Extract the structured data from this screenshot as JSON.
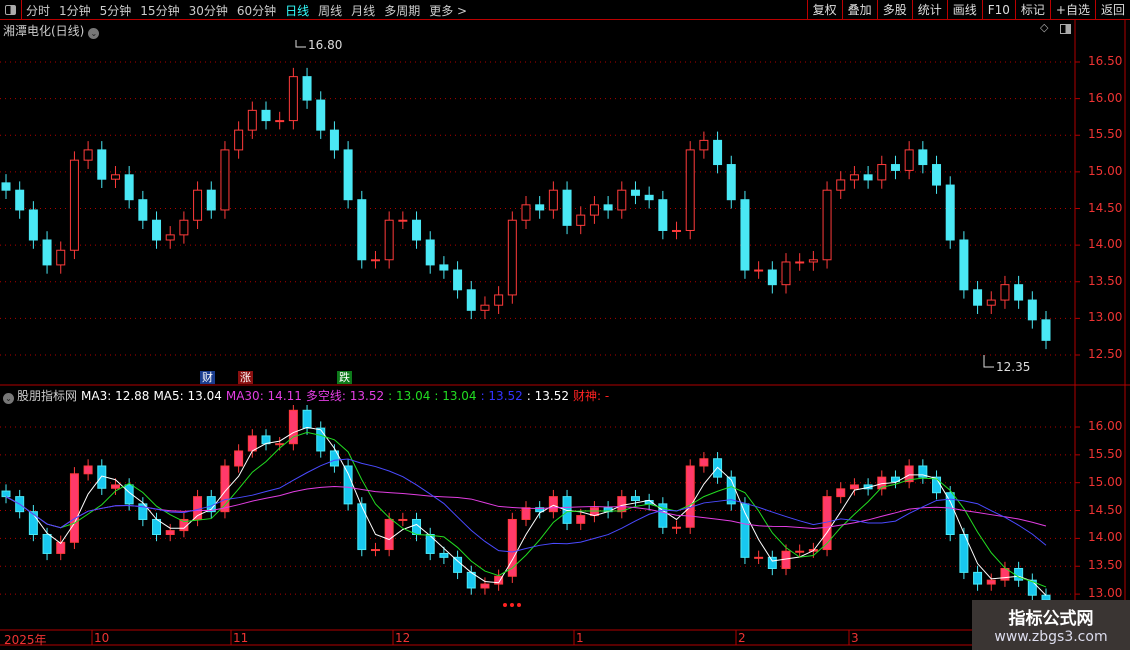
{
  "toolbar": {
    "periods": [
      "分时",
      "1分钟",
      "5分钟",
      "15分钟",
      "30分钟",
      "60分钟",
      "日线",
      "周线",
      "月线",
      "多周期",
      "更多 >"
    ],
    "active_index": 6,
    "buttons": [
      "复权",
      "叠加",
      "多股",
      "统计",
      "画线",
      "F10",
      "标记",
      "+自选",
      "返回"
    ]
  },
  "main": {
    "title": "湘潭电化(日线)",
    "high_label": "16.80",
    "low_label": "12.35",
    "y_ticks": [
      "16.50",
      "16.00",
      "15.50",
      "15.00",
      "14.50",
      "14.00",
      "13.50",
      "13.00",
      "12.50"
    ],
    "markers": [
      {
        "text": "财",
        "color": "#1a3d8f"
      },
      {
        "text": "涨",
        "color": "#8a1010"
      },
      {
        "text": "跌",
        "color": "#0d7a1a"
      }
    ]
  },
  "indicator": {
    "name": "股朋指标网",
    "ma3": "MA3: 12.88",
    "ma5": "MA5: 13.04",
    "ma30": "MA30: 14.11",
    "dk": "多空线: 13.52",
    "v2": ": 13.04",
    "v3": ": 13.04",
    "v4": ": 13.52",
    "v5": ": 13.52",
    "cs": "财神: -",
    "y_ticks": [
      "16.00",
      "15.50",
      "15.00",
      "14.50",
      "14.00",
      "13.50",
      "13.00"
    ]
  },
  "time_axis": {
    "labels": [
      "2025年",
      "10",
      "11",
      "12",
      "1",
      "2",
      "3"
    ]
  },
  "watermark": {
    "line1": "指标公式网",
    "line2": "www.zbgs3.com"
  },
  "colors": {
    "up": "#ff3b3b",
    "down": "#4ae8f5",
    "grid": "#b00000",
    "ma_white": "#ffffff",
    "ma_green": "#22dd22",
    "ma_magenta": "#e23ee2",
    "ma_blue": "#4a4aff"
  },
  "chart_data": {
    "type": "candlestick",
    "closes": [
      14.75,
      14.48,
      14.07,
      13.73,
      13.93,
      15.16,
      15.3,
      14.9,
      14.96,
      14.62,
      14.34,
      14.07,
      14.14,
      14.34,
      14.75,
      14.48,
      15.3,
      15.57,
      15.84,
      15.7,
      15.7,
      16.3,
      15.98,
      15.57,
      15.3,
      14.62,
      13.8,
      13.8,
      14.34,
      14.34,
      14.07,
      13.73,
      13.66,
      13.39,
      13.11,
      13.18,
      13.32,
      14.34,
      14.55,
      14.48,
      14.75,
      14.27,
      14.41,
      14.55,
      14.48,
      14.75,
      14.68,
      14.62,
      14.2,
      14.2,
      15.3,
      15.43,
      15.1,
      14.62,
      13.66,
      13.66,
      13.46,
      13.77,
      13.77,
      13.8,
      14.75,
      14.89,
      14.96,
      14.89,
      15.1,
      15.02,
      15.3,
      15.1,
      14.82,
      14.07,
      13.39,
      13.18,
      13.25,
      13.46,
      13.25,
      12.98,
      12.7
    ],
    "high": 16.8,
    "low": 12.35
  }
}
